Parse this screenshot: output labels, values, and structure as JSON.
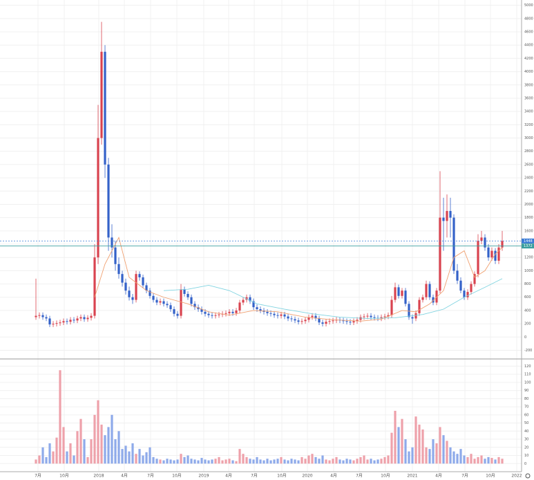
{
  "chart_data": [
    {
      "type": "candlestick",
      "open": [
        300,
        320,
        330,
        300,
        280,
        190,
        200,
        210,
        220,
        240,
        230,
        260,
        250,
        280,
        300,
        270,
        290,
        320,
        1200,
        3000,
        4300,
        2600,
        1500,
        1350,
        1100,
        950,
        820,
        700,
        600,
        560,
        950,
        900,
        780,
        700,
        620,
        560,
        520,
        540,
        500,
        480,
        420,
        350,
        320,
        720,
        650,
        600,
        500,
        450,
        420,
        380,
        350,
        330,
        320,
        330,
        340,
        350,
        360,
        380,
        360,
        400,
        520,
        560,
        600,
        540,
        450,
        420,
        400,
        380,
        360,
        350,
        330,
        320,
        340,
        310,
        280,
        270,
        250,
        230,
        240,
        260,
        300,
        320,
        280,
        220,
        200,
        230,
        240,
        250,
        260,
        250,
        240,
        230,
        220,
        240,
        260,
        300,
        310,
        320,
        300,
        290,
        280,
        300,
        310,
        330,
        560,
        750,
        620,
        700,
        500,
        300,
        280,
        360,
        560,
        600,
        800,
        600,
        520,
        700,
        1800,
        1750,
        1900,
        1800,
        1000,
        850,
        700,
        600,
        680,
        800,
        950,
        1450,
        1500,
        1350,
        1200,
        1300,
        1150,
        1350
      ],
      "high": [
        880,
        370,
        370,
        340,
        320,
        240,
        250,
        260,
        280,
        280,
        300,
        300,
        320,
        340,
        340,
        330,
        360,
        1400,
        3500,
        4750,
        4400,
        2700,
        1700,
        1450,
        1200,
        1000,
        880,
        760,
        650,
        1000,
        990,
        940,
        820,
        740,
        660,
        600,
        580,
        580,
        540,
        520,
        460,
        390,
        800,
        760,
        690,
        640,
        540,
        490,
        460,
        420,
        390,
        370,
        370,
        380,
        390,
        400,
        420,
        420,
        440,
        560,
        600,
        640,
        640,
        580,
        490,
        460,
        440,
        420,
        400,
        390,
        370,
        380,
        380,
        350,
        320,
        310,
        290,
        280,
        300,
        340,
        360,
        360,
        320,
        260,
        270,
        280,
        290,
        300,
        300,
        290,
        280,
        270,
        280,
        300,
        340,
        350,
        360,
        360,
        340,
        330,
        340,
        350,
        370,
        620,
        820,
        790,
        740,
        740,
        540,
        340,
        400,
        600,
        640,
        850,
        840,
        640,
        740,
        2500,
        2100,
        2150,
        2100,
        1850,
        1100,
        900,
        740,
        720,
        840,
        990,
        1550,
        1600,
        1550,
        1400,
        1350,
        1340,
        1400,
        1600
      ],
      "low": [
        260,
        280,
        260,
        240,
        150,
        150,
        160,
        170,
        180,
        190,
        190,
        210,
        210,
        240,
        230,
        230,
        250,
        280,
        1100,
        2900,
        2400,
        1300,
        1200,
        1000,
        880,
        760,
        640,
        550,
        500,
        520,
        850,
        740,
        660,
        580,
        520,
        480,
        480,
        460,
        440,
        380,
        310,
        280,
        280,
        610,
        560,
        460,
        410,
        380,
        340,
        310,
        290,
        280,
        280,
        290,
        300,
        310,
        320,
        320,
        320,
        360,
        480,
        520,
        500,
        410,
        380,
        360,
        340,
        320,
        310,
        290,
        280,
        280,
        270,
        240,
        230,
        210,
        190,
        190,
        200,
        220,
        260,
        240,
        180,
        160,
        160,
        190,
        200,
        210,
        210,
        200,
        190,
        180,
        180,
        200,
        220,
        260,
        270,
        260,
        250,
        240,
        240,
        260,
        270,
        290,
        520,
        580,
        580,
        460,
        260,
        200,
        240,
        320,
        520,
        560,
        560,
        480,
        480,
        660,
        1300,
        1500,
        1500,
        950,
        800,
        660,
        560,
        560,
        640,
        760,
        900,
        1400,
        1300,
        1150,
        1150,
        1100,
        1100,
        1300
      ],
      "close": [
        320,
        330,
        300,
        280,
        190,
        200,
        210,
        220,
        240,
        230,
        260,
        250,
        280,
        300,
        270,
        290,
        320,
        1200,
        3000,
        4300,
        2600,
        1500,
        1350,
        1100,
        950,
        820,
        700,
        600,
        560,
        950,
        900,
        780,
        700,
        620,
        560,
        520,
        540,
        500,
        480,
        420,
        350,
        320,
        720,
        650,
        600,
        500,
        450,
        420,
        380,
        350,
        330,
        320,
        330,
        340,
        350,
        360,
        380,
        360,
        400,
        520,
        560,
        600,
        540,
        450,
        420,
        400,
        380,
        360,
        350,
        330,
        320,
        340,
        310,
        280,
        270,
        250,
        230,
        240,
        260,
        300,
        320,
        280,
        220,
        200,
        230,
        240,
        250,
        260,
        250,
        240,
        230,
        220,
        240,
        260,
        300,
        310,
        320,
        300,
        290,
        280,
        300,
        310,
        330,
        560,
        750,
        620,
        700,
        500,
        300,
        280,
        360,
        560,
        600,
        800,
        600,
        520,
        700,
        1800,
        1750,
        1900,
        1800,
        1000,
        850,
        700,
        600,
        680,
        800,
        950,
        1450,
        1500,
        1350,
        1200,
        1300,
        1150,
        1350,
        1448
      ],
      "up_color": "#d9434f",
      "down_color": "#3462c9",
      "lines": [
        {
          "color": "#f0a070",
          "x": [
            17,
            20,
            24,
            27,
            32,
            37,
            44,
            50,
            56,
            63,
            70,
            78,
            86,
            94,
            100,
            106,
            110,
            114,
            118,
            121,
            124,
            127,
            130,
            133,
            135
          ],
          "values": [
            600,
            1100,
            1500,
            900,
            700,
            600,
            500,
            380,
            330,
            400,
            380,
            300,
            260,
            240,
            270,
            400,
            380,
            500,
            700,
            1200,
            1300,
            900,
            1000,
            1250,
            1350
          ]
        },
        {
          "color": "#7fd3e0",
          "x": [
            37,
            44,
            50,
            56,
            64,
            72,
            80,
            88,
            96,
            104,
            112,
            118,
            124,
            130,
            135
          ],
          "values": [
            700,
            720,
            780,
            700,
            500,
            420,
            350,
            300,
            280,
            290,
            340,
            420,
            600,
            750,
            880
          ]
        }
      ],
      "price_lines": [
        {
          "value": 1448,
          "color": "#3a7bd5",
          "dashed": true
        },
        {
          "value": 1372,
          "color": "#3a9e9e",
          "dashed": false
        }
      ],
      "xlim": [
        -10.4,
        140.6
      ],
      "xticks": [
        {
          "value": 0.6,
          "label": "7月"
        },
        {
          "value": 8.2,
          "label": "10月"
        },
        {
          "value": 18.2,
          "label": "2018"
        },
        {
          "value": 25.6,
          "label": "4月"
        },
        {
          "value": 33.2,
          "label": "7月"
        },
        {
          "value": 40.8,
          "label": "10月"
        },
        {
          "value": 48.6,
          "label": "2019"
        },
        {
          "value": 55.8,
          "label": "4月"
        },
        {
          "value": 63.2,
          "label": "7月"
        },
        {
          "value": 71.2,
          "label": "10月"
        },
        {
          "value": 78.6,
          "label": "2020"
        },
        {
          "value": 86.2,
          "label": "4月"
        },
        {
          "value": 93.6,
          "label": "7月"
        },
        {
          "value": 101.2,
          "label": "10月"
        },
        {
          "value": 109,
          "label": "2021"
        },
        {
          "value": 116.6,
          "label": "4月"
        },
        {
          "value": 124.2,
          "label": "7月"
        },
        {
          "value": 131.6,
          "label": "10月"
        },
        {
          "value": 139.2,
          "label": "2022"
        }
      ],
      "ylim": [
        -320,
        5080
      ],
      "yticks": [
        -200,
        0,
        200,
        400,
        600,
        800,
        1000,
        1200,
        1400,
        1600,
        1800,
        2000,
        2200,
        2400,
        2600,
        2800,
        3000,
        3200,
        3400,
        3600,
        3800,
        4000,
        4200,
        4400,
        4600,
        4800,
        5000
      ],
      "grid": true
    },
    {
      "type": "volume",
      "values": [
        5,
        10,
        20,
        8,
        25,
        15,
        32,
        115,
        45,
        15,
        25,
        10,
        40,
        55,
        30,
        8,
        30,
        60,
        78,
        48,
        35,
        45,
        60,
        30,
        40,
        18,
        22,
        15,
        25,
        12,
        18,
        10,
        14,
        20,
        8,
        6,
        5,
        4,
        6,
        5,
        4,
        5,
        12,
        8,
        10,
        6,
        5,
        4,
        7,
        5,
        4,
        5,
        6,
        8,
        4,
        5,
        6,
        4,
        3,
        18,
        12,
        8,
        6,
        5,
        8,
        5,
        4,
        6,
        4,
        5,
        6,
        8,
        5,
        4,
        6,
        5,
        4,
        8,
        6,
        10,
        12,
        8,
        6,
        10,
        5,
        4,
        6,
        8,
        5,
        4,
        6,
        5,
        4,
        6,
        8,
        10,
        5,
        6,
        4,
        5,
        6,
        8,
        10,
        38,
        65,
        45,
        55,
        30,
        15,
        20,
        58,
        48,
        42,
        20,
        18,
        30,
        25,
        45,
        35,
        28,
        20,
        15,
        12,
        18,
        10,
        8,
        12,
        6,
        8,
        10,
        6,
        8,
        7,
        5,
        8,
        6
      ],
      "up_color": "#eea1aa",
      "down_color": "#8eaaea",
      "ylim": [
        -10,
        128
      ],
      "yticks": [
        0,
        10,
        20,
        30,
        40,
        50,
        60,
        70,
        80,
        90,
        100,
        110,
        120
      ],
      "grid": true
    }
  ]
}
